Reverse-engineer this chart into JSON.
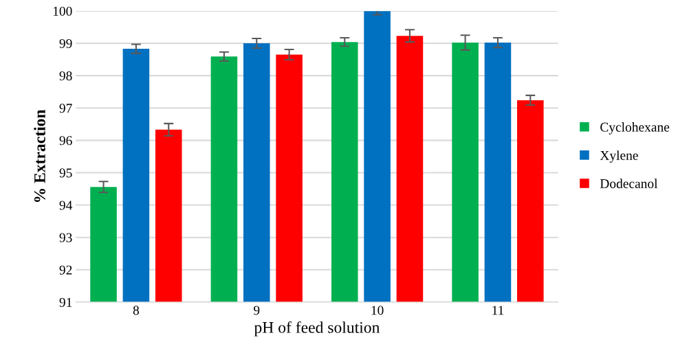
{
  "chart_data": {
    "type": "bar",
    "xlabel": "pH of feed solution",
    "ylabel": "% Extraction",
    "categories": [
      "8",
      "9",
      "10",
      "11"
    ],
    "series": [
      {
        "name": "Cyclohexane",
        "color": "#00b050",
        "values": [
          94.56,
          98.59,
          99.04,
          99.02
        ],
        "errors": [
          0.17,
          0.14,
          0.13,
          0.23
        ]
      },
      {
        "name": "Xylene",
        "color": "#0070c0",
        "values": [
          98.83,
          99.0,
          99.99,
          99.02
        ],
        "errors": [
          0.14,
          0.15,
          0.11,
          0.15
        ]
      },
      {
        "name": "Dodecanol",
        "color": "#ff0000",
        "values": [
          96.33,
          98.65,
          99.23,
          97.24
        ],
        "errors": [
          0.19,
          0.16,
          0.19,
          0.15
        ]
      }
    ],
    "ylim": [
      91,
      100
    ],
    "yticks": [
      91,
      92,
      93,
      94,
      95,
      96,
      97,
      98,
      99,
      100
    ],
    "grid": "y",
    "legend": "right"
  }
}
